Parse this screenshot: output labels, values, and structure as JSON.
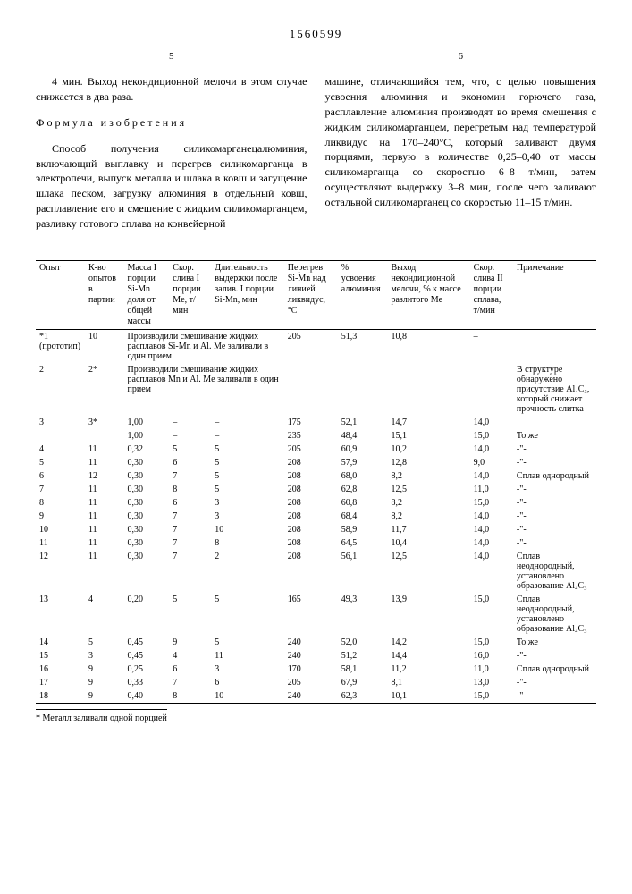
{
  "doc_number": "1560599",
  "col_left_num": "5",
  "col_right_num": "6",
  "left_para1": "4 мин. Выход некондиционной мелочи в этом случае снижается в два раза.",
  "formula_title": "Формула изобретения",
  "left_para2": "Способ получения силикомарганецалюминия, включающий выплавку и перегрев силикомарганца в электропечи, выпуск металла и шлака в ковш и загущение шлака песком, загрузку алюминия в отдельный ковш, расплавление его и смешение с жидким силикомарганцем, разливку готового сплава на конвейерной",
  "right_para": "машине, отличающийся тем, что, с целью повышения усвоения алюминия и экономии горючего газа, расплавление алюминия производят во время смешения с жидким силикомарганцем, перегретым над температурой ликвидус на 170–240°С, который заливают двумя порциями, первую в количестве 0,25–0,40 от массы силикомарганца со скоростью 6–8 т/мин, затем осуществляют выдержку 3–8 мин, после чего заливают остальной силикомарганец со скоростью 11–15 т/мин.",
  "line_marks": {
    "l5": "5",
    "l10": "10"
  },
  "table": {
    "headers": [
      "Опыт",
      "К-во опытов в партии",
      "Масса I порции Si-Mn доля от общей массы",
      "Скор. слива I порции Me, т/мин",
      "Длительность выдержки после залив. I порции Si-Mn, мин",
      "Перегрев Si-Mn над линией ликвидус, °С",
      "% усвоения алюминия",
      "Выход некондиционной мелочи, % к массе разлитого Me",
      "Скор. слива II порции сплава, т/мин",
      "Примечание"
    ],
    "rows": [
      {
        "c": [
          "*1 (прототип)",
          "10",
          "Производили смешивание жидких расплавов Si-Mn и Al. Me заливали в один прием",
          "",
          "",
          "205",
          "51,3",
          "10,8",
          "–",
          ""
        ],
        "span": true
      },
      {
        "c": [
          "2",
          "2*",
          "Производили смешивание жидких расплавов Mn и Al. Me заливали в один прием",
          "",
          "",
          "",
          "",
          "",
          "",
          "В структуре обнаружено присутствие Al₄C₃, который снижает прочность слитка"
        ],
        "span": true
      },
      {
        "c": [
          "3",
          "3*",
          "1,00",
          "–",
          "–",
          "175",
          "52,1",
          "14,7",
          "14,0",
          ""
        ]
      },
      {
        "c": [
          "",
          "",
          "1,00",
          "–",
          "–",
          "235",
          "48,4",
          "15,1",
          "15,0",
          "То же"
        ]
      },
      {
        "c": [
          "4",
          "11",
          "0,32",
          "5",
          "5",
          "205",
          "60,9",
          "10,2",
          "14,0",
          "-\"-"
        ]
      },
      {
        "c": [
          "5",
          "11",
          "0,30",
          "6",
          "5",
          "208",
          "57,9",
          "12,8",
          "9,0",
          "-\"-"
        ]
      },
      {
        "c": [
          "6",
          "12",
          "0,30",
          "7",
          "5",
          "208",
          "68,0",
          "8,2",
          "14,0",
          "Сплав однородный"
        ]
      },
      {
        "c": [
          "7",
          "11",
          "0,30",
          "8",
          "5",
          "208",
          "62,8",
          "12,5",
          "11,0",
          "-\"-"
        ]
      },
      {
        "c": [
          "8",
          "11",
          "0,30",
          "6",
          "3",
          "208",
          "60,8",
          "8,2",
          "15,0",
          "-\"-"
        ]
      },
      {
        "c": [
          "9",
          "11",
          "0,30",
          "7",
          "3",
          "208",
          "68,4",
          "8,2",
          "14,0",
          "-\"-"
        ]
      },
      {
        "c": [
          "10",
          "11",
          "0,30",
          "7",
          "10",
          "208",
          "58,9",
          "11,7",
          "14,0",
          "-\"-"
        ]
      },
      {
        "c": [
          "11",
          "11",
          "0,30",
          "7",
          "8",
          "208",
          "64,5",
          "10,4",
          "14,0",
          "-\"-"
        ]
      },
      {
        "c": [
          "12",
          "11",
          "0,30",
          "7",
          "2",
          "208",
          "56,1",
          "12,5",
          "14,0",
          "Сплав неоднородный, установлено образование Al₄C₃"
        ]
      },
      {
        "c": [
          "13",
          "4",
          "0,20",
          "5",
          "5",
          "165",
          "49,3",
          "13,9",
          "15,0",
          "Сплав неоднородный, установлено образование Al₄C₃"
        ]
      },
      {
        "c": [
          "14",
          "5",
          "0,45",
          "9",
          "5",
          "240",
          "52,0",
          "14,2",
          "15,0",
          "То же"
        ]
      },
      {
        "c": [
          "15",
          "3",
          "0,45",
          "4",
          "11",
          "240",
          "51,2",
          "14,4",
          "16,0",
          "-\"-"
        ]
      },
      {
        "c": [
          "16",
          "9",
          "0,25",
          "6",
          "3",
          "170",
          "58,1",
          "11,2",
          "11,0",
          "Сплав однородный"
        ]
      },
      {
        "c": [
          "17",
          "9",
          "0,33",
          "7",
          "6",
          "205",
          "67,9",
          "8,1",
          "13,0",
          "-\"-"
        ]
      },
      {
        "c": [
          "18",
          "9",
          "0,40",
          "8",
          "10",
          "240",
          "62,3",
          "10,1",
          "15,0",
          "-\"-"
        ]
      }
    ],
    "footnote": "* Металл заливали одной порцией"
  }
}
